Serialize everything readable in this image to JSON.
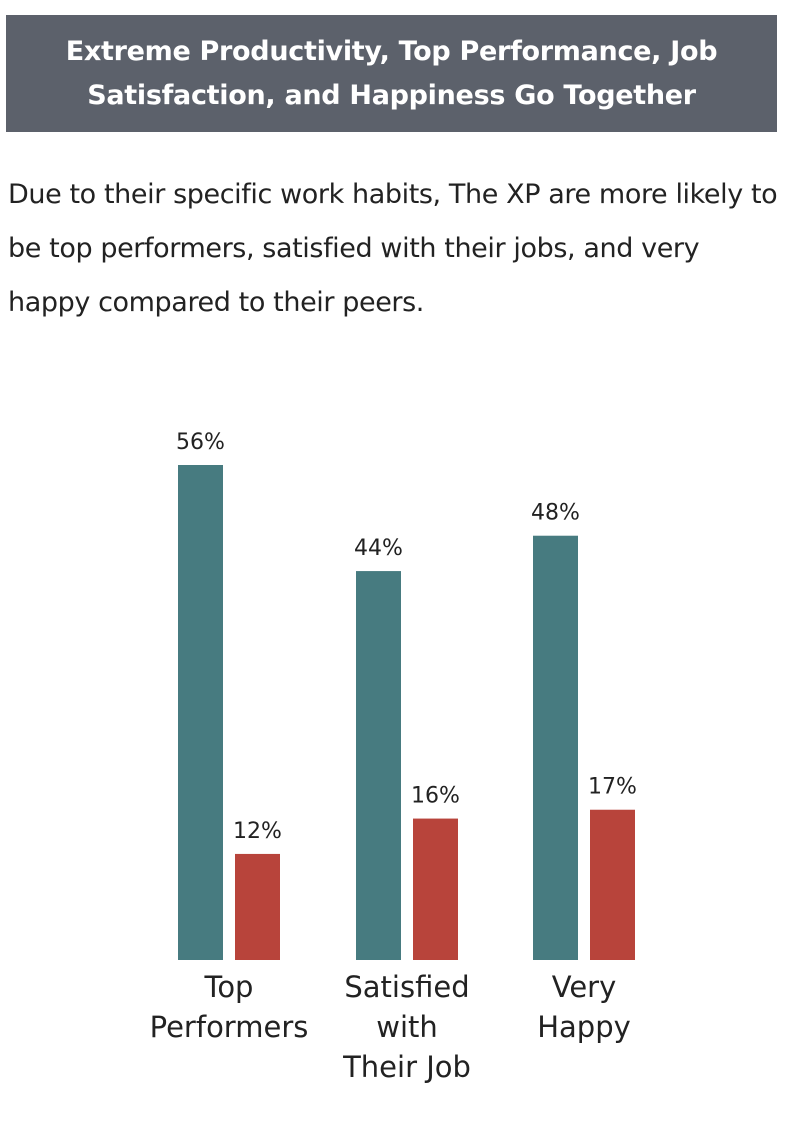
{
  "header": {
    "title": "Extreme Productivity, Top Performance, Job Satisfaction, and Happiness Go Together"
  },
  "subtitle": "Due to their specific work habits, The XP are more likely to be top performers, satisfied with their jobs, and very happy compared to their peers.",
  "chart_data": {
    "type": "bar",
    "categories": [
      [
        "Top",
        "Performers"
      ],
      [
        "Satisfied",
        "with",
        "Their Job"
      ],
      [
        "Very",
        "Happy"
      ]
    ],
    "series": [
      {
        "values": [
          56,
          44,
          48
        ],
        "color": "#477b80"
      },
      {
        "values": [
          12,
          16,
          17
        ],
        "color": "#b8443b"
      }
    ],
    "value_suffix": "%",
    "ylim": [
      0,
      56
    ],
    "grid": false
  }
}
